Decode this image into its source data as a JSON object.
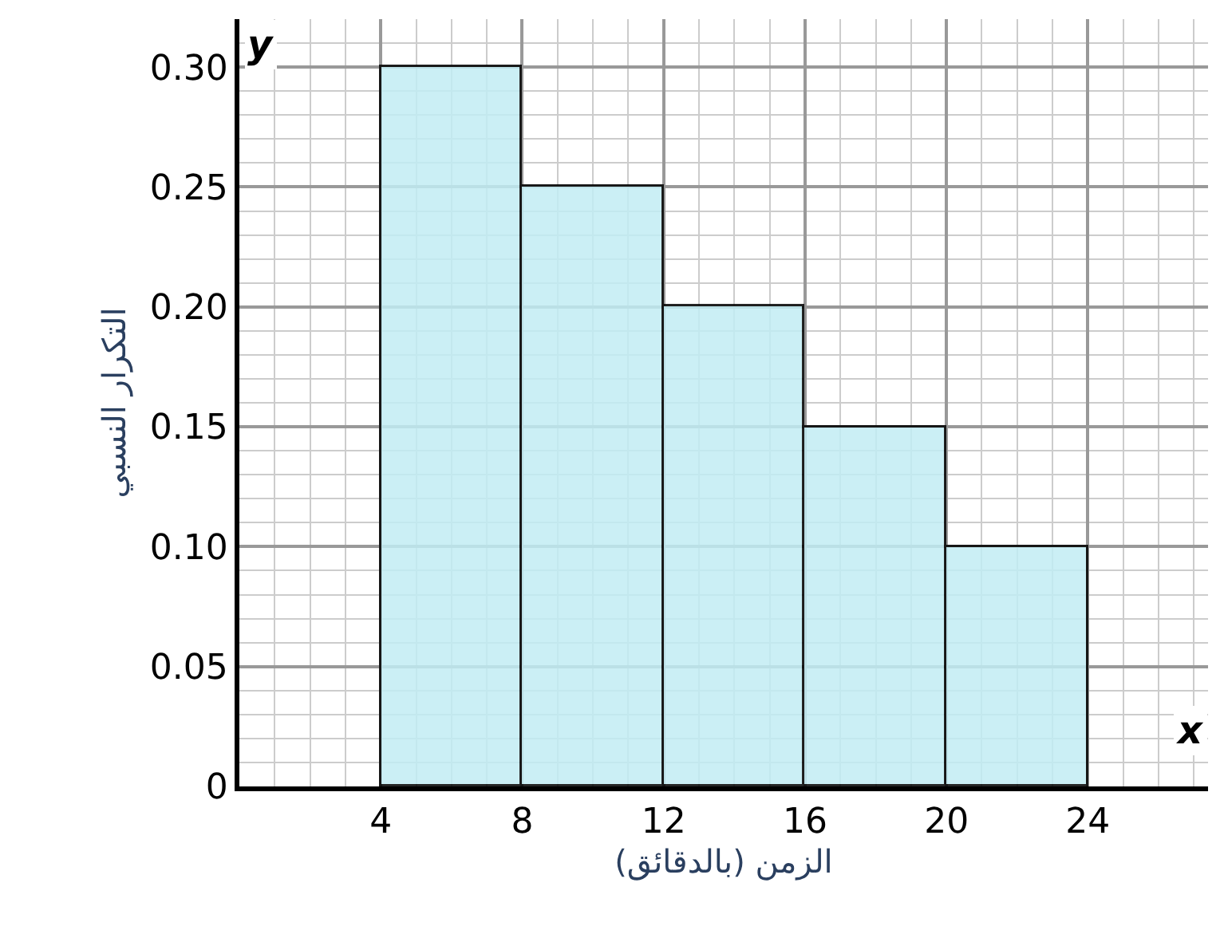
{
  "chart_data": {
    "type": "histogram",
    "xlabel": "الزمن (بالدقائق)",
    "ylabel": "التكرار النسبي",
    "bins": [
      4,
      8,
      12,
      16,
      20,
      24
    ],
    "values": [
      0.3,
      0.25,
      0.2,
      0.15,
      0.1
    ],
    "color": "#c2edf4",
    "xlim": [
      0,
      27.4
    ],
    "xticks": [
      4,
      8,
      12,
      16,
      20,
      24
    ],
    "ylim": [
      0,
      0.32
    ],
    "yticks": [
      0,
      {
        "value": 0.05,
        "label": "0.05"
      },
      {
        "value": 0.1,
        "label": "0.10"
      },
      {
        "value": 0.15,
        "label": "0.15"
      },
      {
        "value": 0.2,
        "label": "0.20"
      },
      {
        "value": 0.25,
        "label": "0.25"
      },
      {
        "value": 0.3,
        "label": "0.30"
      }
    ],
    "annotations": [
      "x",
      "y"
    ],
    "grid": true
  }
}
